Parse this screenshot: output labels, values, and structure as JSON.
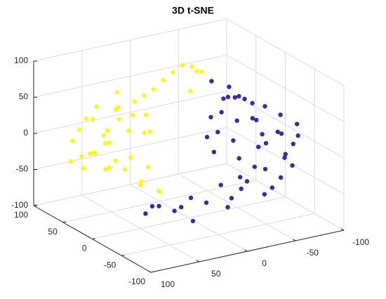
{
  "chart_data": {
    "type": "scatter3d",
    "title": "3D t-SNE",
    "xlim": [
      -100,
      100
    ],
    "ylim": [
      -100,
      100
    ],
    "zlim": [
      -100,
      100
    ],
    "xticks": [
      -100,
      -50,
      0,
      50,
      100
    ],
    "yticks": [
      -100,
      -50,
      0,
      50,
      100
    ],
    "zticks": [
      -100,
      -50,
      0,
      50,
      100
    ],
    "grid": true,
    "series": [
      {
        "color": "#f9fb0e",
        "x": [
          60,
          80,
          90,
          40,
          30,
          50,
          20,
          70,
          60,
          50,
          75,
          85,
          65,
          45,
          35,
          55,
          70,
          40,
          55,
          65,
          45,
          80,
          90,
          60,
          40,
          30,
          25,
          50,
          35,
          25,
          75,
          55,
          85,
          70,
          95,
          -10,
          -20,
          -30,
          -40,
          -50,
          -60,
          0,
          10,
          -35,
          -45
        ],
        "y": [
          40,
          30,
          50,
          30,
          20,
          0,
          40,
          60,
          20,
          40,
          45,
          40,
          35,
          25,
          45,
          55,
          20,
          10,
          30,
          50,
          50,
          55,
          35,
          10,
          15,
          0,
          10,
          60,
          35,
          25,
          40,
          45,
          20,
          10,
          45,
          60,
          60,
          60,
          60,
          60,
          60,
          60,
          60,
          55,
          60
        ],
        "z": [
          20,
          0,
          10,
          40,
          -30,
          -40,
          30,
          30,
          45,
          70,
          -10,
          -25,
          -30,
          -15,
          10,
          5,
          15,
          25,
          55,
          50,
          40,
          20,
          -5,
          -20,
          -45,
          -55,
          -60,
          -10,
          55,
          15,
          40,
          -35,
          5,
          -5,
          -15,
          60,
          68,
          75,
          70,
          60,
          45,
          50,
          45,
          40,
          62
        ]
      },
      {
        "color": "#3e26a8",
        "x": [
          -100,
          -60,
          20,
          50,
          -30,
          -80,
          -70,
          -90,
          -50,
          -40,
          -70,
          -85,
          -95,
          -60,
          -50,
          -40,
          -30,
          -20,
          -45,
          -55,
          -75,
          -65,
          -45,
          -20,
          0,
          10,
          30,
          40,
          60,
          -10,
          -80,
          -90,
          -35,
          -25,
          -60,
          -85,
          -55,
          -35,
          -70,
          -95,
          -60,
          -40,
          -15,
          -75,
          -65,
          -60,
          20,
          -50,
          -80,
          -30
        ],
        "y": [
          -20,
          20,
          -20,
          -20,
          -40,
          0,
          -10,
          -30,
          0,
          10,
          20,
          10,
          0,
          -20,
          -30,
          -20,
          0,
          -10,
          15,
          5,
          -40,
          -50,
          -55,
          -40,
          -30,
          -20,
          -25,
          -15,
          -25,
          -50,
          -20,
          -10,
          20,
          10,
          30,
          -25,
          -40,
          -30,
          0,
          -30,
          -10,
          -10,
          -30,
          15,
          40,
          60,
          -40,
          -60,
          -45,
          -50
        ],
        "z": [
          10,
          40,
          -70,
          -60,
          -50,
          -20,
          0,
          -10,
          20,
          30,
          35,
          25,
          15,
          -10,
          -30,
          -20,
          10,
          -10,
          45,
          50,
          -20,
          -40,
          -55,
          -60,
          -65,
          -60,
          -70,
          -65,
          -65,
          -65,
          5,
          -5,
          20,
          0,
          50,
          -25,
          -30,
          -40,
          15,
          0,
          25,
          0,
          -45,
          30,
          30,
          44,
          -80,
          -45,
          -30,
          -35
        ]
      }
    ]
  }
}
